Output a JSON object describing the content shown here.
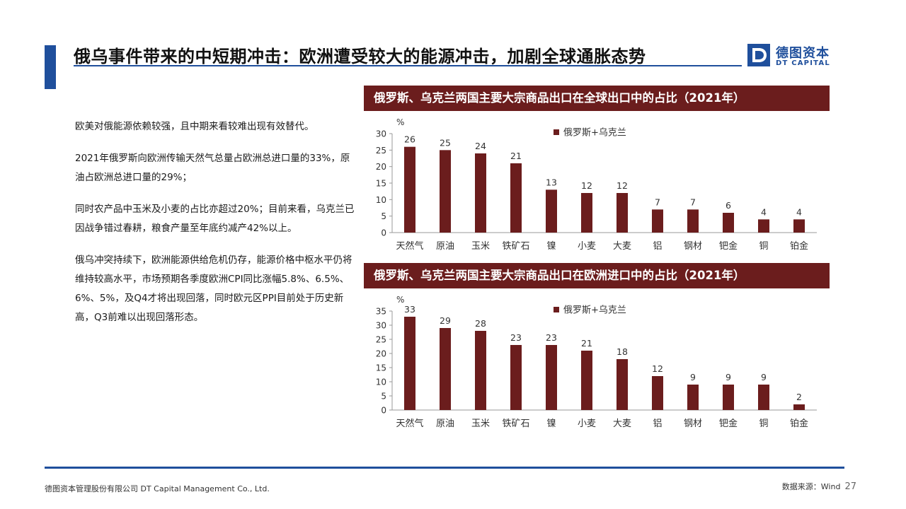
{
  "header": {
    "title": "俄乌事件带来的中短期冲击：欧洲遭受较大的能源冲击，加剧全球通胀态势",
    "logo_cn": "德图资本",
    "logo_en": "DT CAPITAL",
    "logo_letter": "D"
  },
  "left_text": {
    "p1": "欧美对俄能源依赖较强，且中期来看较难出现有效替代。",
    "p2": "2021年俄罗斯向欧洲传输天然气总量占欧洲总进口量的33%，原油占欧洲总进口量的29%；",
    "p3": "同时农产品中玉米及小麦的占比亦超过20%；目前来看，乌克兰已因战争错过春耕，粮食产量至年底约减产42%以上。",
    "p4": "俄乌冲突持续下，欧洲能源供给危机仍存，能源价格中枢水平仍将维持较高水平，市场预期各季度欧洲CPI同比涨幅5.8%、6.5%、6%、5%，及Q4才将出现回落，同时欧元区PPI目前处于历史新高，Q3前难以出现回落形态。"
  },
  "colors": {
    "bar": "#6b1d1d",
    "brand": "#1f4f9c"
  },
  "chart_data": [
    {
      "type": "bar",
      "title": "俄罗斯、乌克兰两国主要大宗商品出口在全球出口中的占比（2021年）",
      "unit_label": "%",
      "categories": [
        "天然气",
        "原油",
        "玉米",
        "铁矿石",
        "镍",
        "小麦",
        "大麦",
        "铝",
        "钢材",
        "钯金",
        "铜",
        "铂金"
      ],
      "series": [
        {
          "name": "俄罗斯+乌克兰",
          "values": [
            26,
            25,
            24,
            21,
            13,
            12,
            12,
            7,
            7,
            6,
            4,
            4
          ]
        }
      ],
      "ylim": [
        0,
        30
      ],
      "yticks": [
        0,
        5,
        10,
        15,
        20,
        25,
        30
      ],
      "legend": "top-center",
      "grid": false
    },
    {
      "type": "bar",
      "title": "俄罗斯、乌克兰两国主要大宗商品出口在欧洲进口中的占比（2021年）",
      "unit_label": "%",
      "categories": [
        "天然气",
        "原油",
        "玉米",
        "铁矿石",
        "镍",
        "小麦",
        "大麦",
        "铝",
        "钢材",
        "钯金",
        "铜",
        "铂金"
      ],
      "series": [
        {
          "name": "俄罗斯+乌克兰",
          "values": [
            33,
            29,
            28,
            23,
            23,
            21,
            18,
            12,
            9,
            9,
            9,
            2
          ]
        }
      ],
      "ylim": [
        0,
        35
      ],
      "yticks": [
        0,
        5,
        10,
        15,
        20,
        25,
        30,
        35
      ],
      "legend": "top-center",
      "grid": false
    }
  ],
  "footer": {
    "company": "德图资本管理股份有限公司  DT Capital Management Co., Ltd.",
    "source": "数据来源：Wind",
    "page": "27"
  }
}
